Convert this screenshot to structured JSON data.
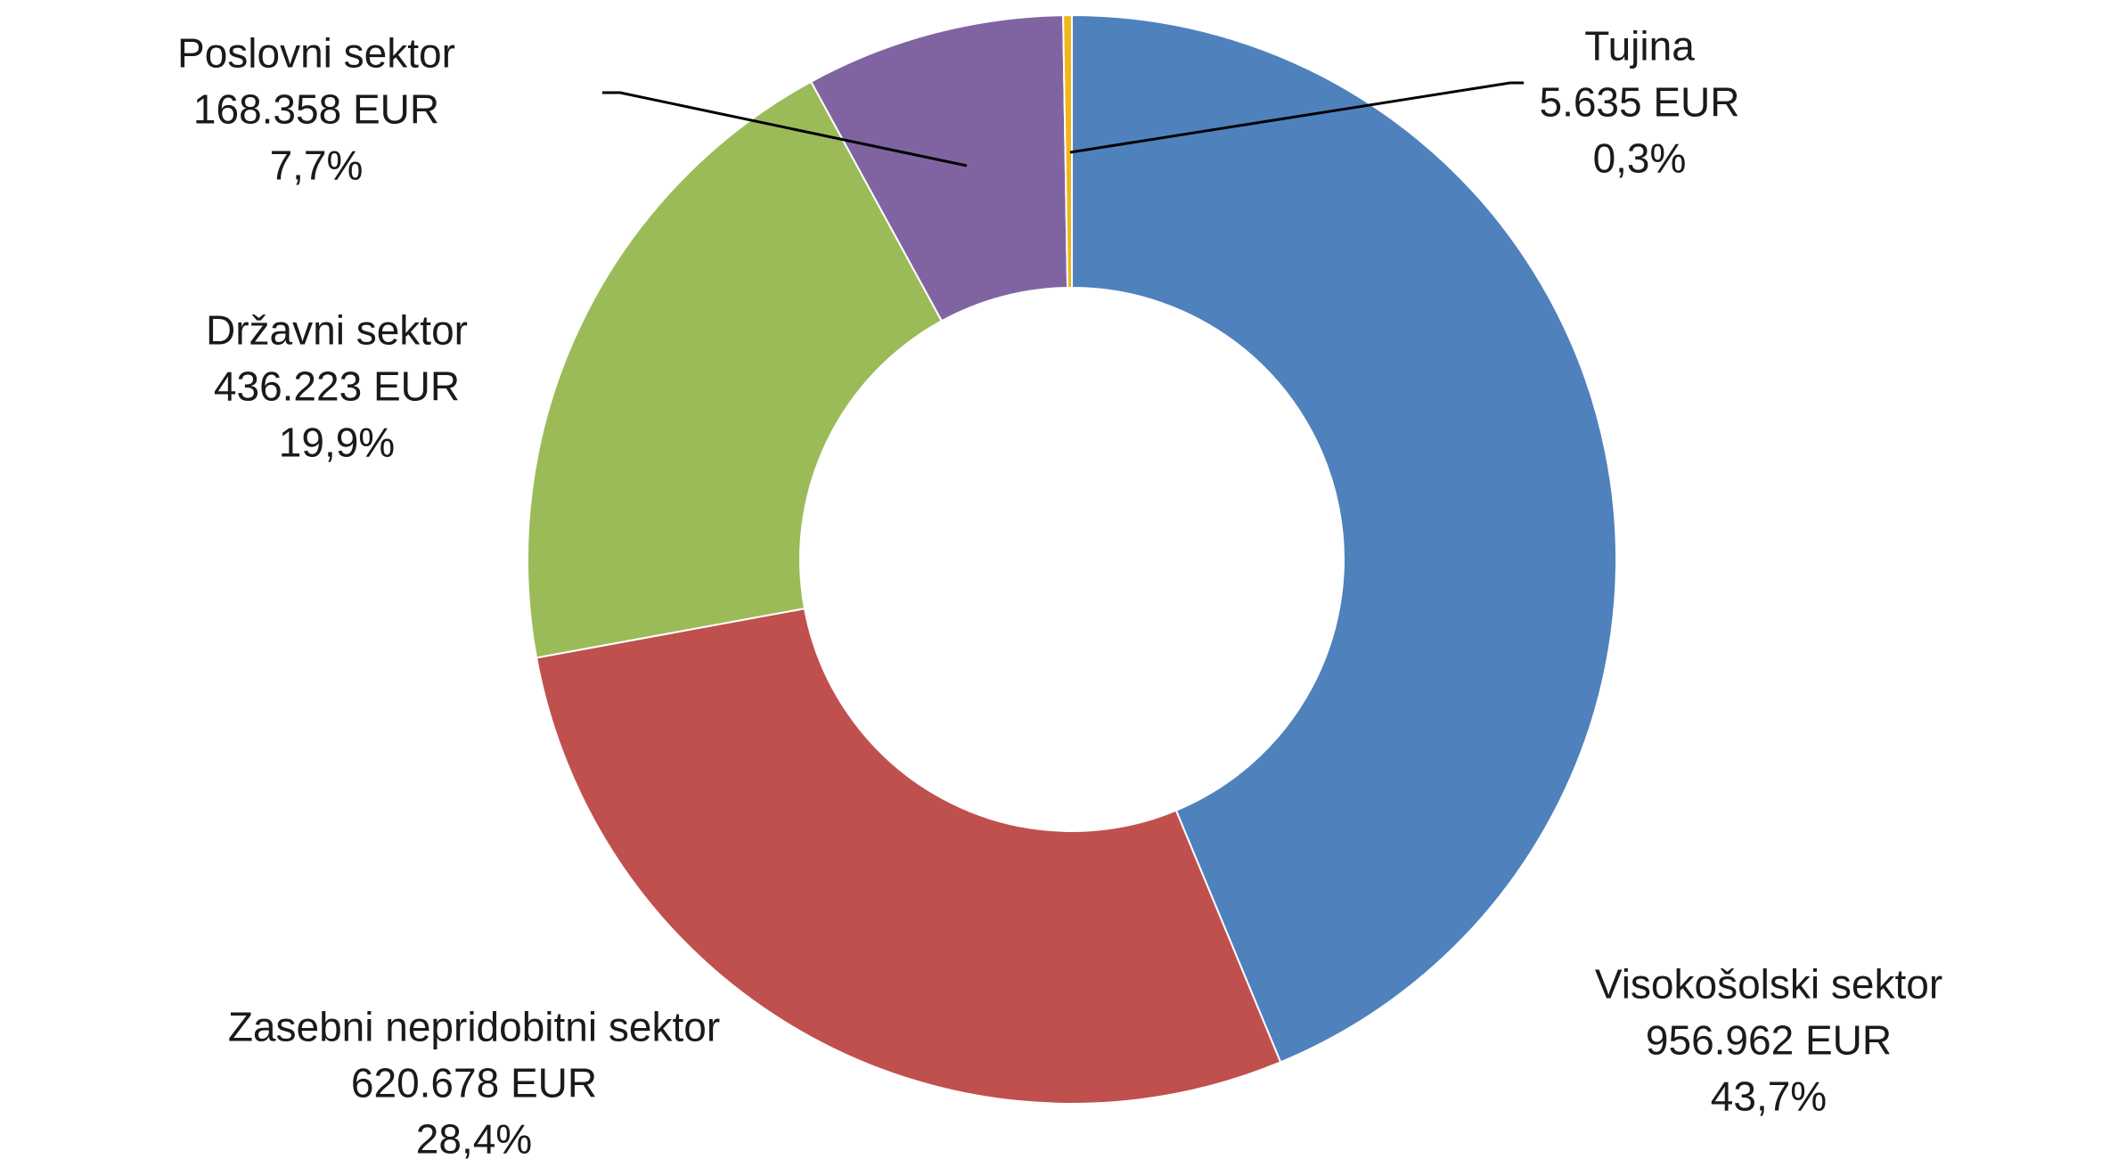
{
  "chart_data": {
    "type": "pie",
    "variant": "donut",
    "title": "",
    "legend": "none",
    "slices": [
      {
        "name": "Visokošolski sektor",
        "value": 956962,
        "value_label": "956.962 EUR",
        "percent_label": "43,7%",
        "color": "#4F81BD"
      },
      {
        "name": "Zasebni nepridobitni sektor",
        "value": 620678,
        "value_label": "620.678 EUR",
        "percent_label": "28,4%",
        "color": "#C0504D"
      },
      {
        "name": "Državni sektor",
        "value": 436223,
        "value_label": "436.223 EUR",
        "percent_label": "19,9%",
        "color": "#9BBB59"
      },
      {
        "name": "Poslovni sektor",
        "value": 168358,
        "value_label": "168.358 EUR",
        "percent_label": "7,7%",
        "color": "#8064A2"
      },
      {
        "name": "Tujina",
        "value": 5635,
        "value_label": "5.635 EUR",
        "percent_label": "0,3%",
        "color": "#F2B619"
      }
    ]
  }
}
